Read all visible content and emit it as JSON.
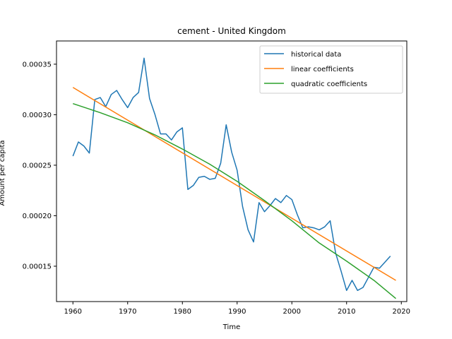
{
  "chart_data": {
    "type": "line",
    "title": "cement - United Kingdom",
    "xlabel": "Time",
    "ylabel": "Amount per capita",
    "xlim": [
      1957,
      2021
    ],
    "ylim": [
      0.000115,
      0.000373
    ],
    "xticks": [
      1960,
      1970,
      1980,
      1990,
      2000,
      2010,
      2020
    ],
    "xtick_labels": [
      "1960",
      "1970",
      "1980",
      "1990",
      "2000",
      "2010",
      "2020"
    ],
    "yticks": [
      0.00015,
      0.0002,
      0.00025,
      0.0003,
      0.00035
    ],
    "ytick_labels": [
      "0.00015",
      "0.00020",
      "0.00025",
      "0.00030",
      "0.00035"
    ],
    "legend_position": "top-right",
    "series": [
      {
        "name": "historical data",
        "color": "#1f77b4",
        "x": [
          1960,
          1961,
          1962,
          1963,
          1964,
          1965,
          1966,
          1967,
          1968,
          1969,
          1970,
          1971,
          1972,
          1973,
          1974,
          1975,
          1976,
          1977,
          1978,
          1979,
          1980,
          1981,
          1982,
          1983,
          1984,
          1985,
          1986,
          1987,
          1988,
          1989,
          1990,
          1991,
          1992,
          1993,
          1994,
          1995,
          1996,
          1997,
          1998,
          1999,
          2000,
          2001,
          2002,
          2003,
          2004,
          2005,
          2006,
          2007,
          2008,
          2009,
          2010,
          2011,
          2012,
          2013,
          2014,
          2015,
          2016,
          2017,
          2018
        ],
        "values": [
          0.000259,
          0.000273,
          0.000269,
          0.000262,
          0.000315,
          0.000317,
          0.000308,
          0.00032,
          0.000324,
          0.000315,
          0.000307,
          0.000317,
          0.000322,
          0.000356,
          0.000316,
          0.0003,
          0.000281,
          0.000281,
          0.000275,
          0.000283,
          0.000287,
          0.000226,
          0.00023,
          0.000238,
          0.000239,
          0.000236,
          0.000237,
          0.000252,
          0.00029,
          0.000263,
          0.000245,
          0.000209,
          0.000186,
          0.000174,
          0.000213,
          0.000204,
          0.00021,
          0.000217,
          0.000213,
          0.00022,
          0.000216,
          0.000201,
          0.000188,
          0.000189,
          0.000188,
          0.000186,
          0.000189,
          0.000195,
          0.000163,
          0.000145,
          0.000126,
          0.000136,
          0.000126,
          0.000129,
          0.000139,
          0.000149,
          0.000148,
          0.000154,
          0.00016
        ]
      },
      {
        "name": "linear coefficients",
        "color": "#ff7f0e",
        "x": [
          1960,
          2019
        ],
        "values": [
          0.000327,
          0.000136
        ]
      },
      {
        "name": "quadratic coefficients",
        "color": "#2ca02c",
        "x": [
          1960,
          1965,
          1970,
          1975,
          1980,
          1985,
          1990,
          1995,
          2000,
          2005,
          2010,
          2015,
          2019
        ],
        "values": [
          0.000311,
          0.000302,
          0.000292,
          0.00028,
          0.000266,
          0.000251,
          0.000234,
          0.000215,
          0.000195,
          0.000173,
          0.000155,
          0.000136,
          0.000118
        ]
      }
    ]
  }
}
